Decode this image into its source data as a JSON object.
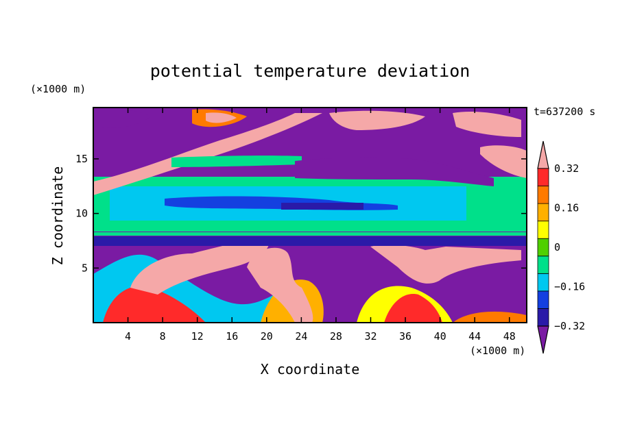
{
  "chart_data": {
    "type": "heatmap",
    "title": "potential temperature deviation",
    "xlabel": "X coordinate",
    "ylabel": "Z coordinate",
    "x_unit": "(×1000 m)",
    "y_unit": "(×1000 m)",
    "time_label": "t=637200 s",
    "xlim": [
      0,
      50
    ],
    "ylim": [
      0,
      19.7
    ],
    "x_ticks": [
      4,
      8,
      12,
      16,
      20,
      24,
      28,
      32,
      36,
      40,
      44,
      48
    ],
    "y_ticks": [
      5,
      10,
      15
    ],
    "colorbar": {
      "levels": [
        -0.4,
        -0.32,
        -0.24,
        -0.16,
        -0.08,
        0,
        0.08,
        0.16,
        0.24,
        0.32,
        0.4
      ],
      "labelled_levels": [
        -0.32,
        -0.16,
        0,
        0.16,
        0.32
      ],
      "labels": [
        "0.32",
        "0.16",
        "0",
        "−0.16",
        "−0.32"
      ],
      "colors": [
        "#7a1ba3",
        "#2a1aa8",
        "#1440e0",
        "#00c8f0",
        "#00e08a",
        "#50d000",
        "#ffff00",
        "#ffb000",
        "#ff7a00",
        "#ff2a2a",
        "#f5a8a8"
      ],
      "extend": "both"
    },
    "layers": [
      {
        "z_range": [
          0,
          4
        ],
        "dominant_sign": "mixed",
        "description_values": [
          0.4,
          -0.4
        ]
      },
      {
        "z_range": [
          7.5,
          8.5
        ],
        "dominant_sign": "negative",
        "value": -0.4
      },
      {
        "z_range": [
          9,
          12.5
        ],
        "dominant_sign": "negative",
        "value": -0.12
      },
      {
        "z_range": [
          13,
          16
        ],
        "dominant_sign": "positive",
        "value": 0.4
      },
      {
        "z_range": [
          16,
          19.7
        ],
        "dominant_sign": "mixed",
        "description_values": [
          0.4,
          -0.4
        ]
      }
    ]
  }
}
